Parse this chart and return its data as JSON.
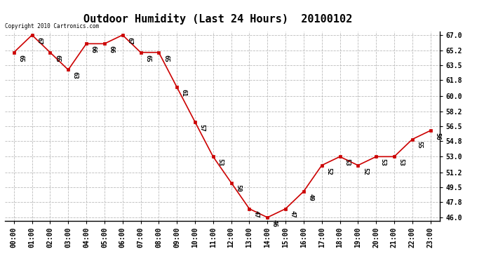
{
  "title": "Outdoor Humidity (Last 24 Hours)  20100102",
  "copyright_text": "Copyright 2010 Cartronics.com",
  "x_labels": [
    "00:00",
    "01:00",
    "02:00",
    "03:00",
    "04:00",
    "05:00",
    "06:00",
    "07:00",
    "08:00",
    "09:00",
    "10:00",
    "11:00",
    "12:00",
    "13:00",
    "14:00",
    "15:00",
    "16:00",
    "17:00",
    "18:00",
    "19:00",
    "20:00",
    "21:00",
    "22:00",
    "23:00"
  ],
  "x_values": [
    0,
    1,
    2,
    3,
    4,
    5,
    6,
    7,
    8,
    9,
    10,
    11,
    12,
    13,
    14,
    15,
    16,
    17,
    18,
    19,
    20,
    21,
    22,
    23
  ],
  "y_values": [
    65,
    67,
    65,
    63,
    66,
    66,
    67,
    65,
    65,
    61,
    57,
    53,
    50,
    47,
    46,
    47,
    49,
    52,
    53,
    52,
    53,
    53,
    55,
    56
  ],
  "y_labels": [
    46.0,
    47.8,
    49.5,
    51.2,
    53.0,
    54.8,
    56.5,
    58.2,
    60.0,
    61.8,
    63.5,
    65.2,
    67.0
  ],
  "ylim": [
    45.6,
    67.4
  ],
  "line_color": "#cc0000",
  "marker_color": "#cc0000",
  "bg_color": "#ffffff",
  "grid_color": "#bbbbbb",
  "title_fontsize": 11,
  "tick_fontsize": 7,
  "annotation_fontsize": 6.5
}
